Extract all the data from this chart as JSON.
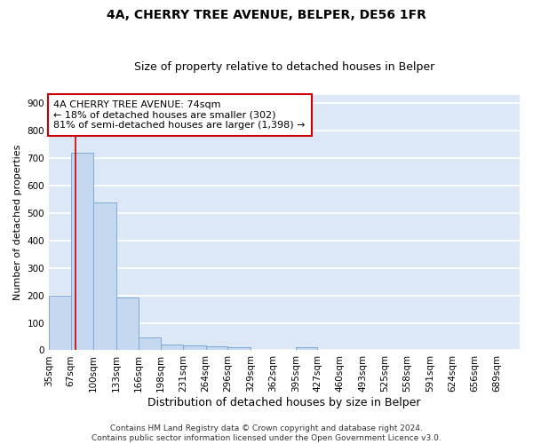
{
  "title1": "4A, CHERRY TREE AVENUE, BELPER, DE56 1FR",
  "title2": "Size of property relative to detached houses in Belper",
  "xlabel": "Distribution of detached houses by size in Belper",
  "ylabel": "Number of detached properties",
  "bin_edges": [
    35,
    67,
    100,
    133,
    166,
    198,
    231,
    264,
    296,
    329,
    362,
    395,
    427,
    460,
    493,
    525,
    558,
    591,
    624,
    656,
    689,
    722
  ],
  "bin_labels": [
    "35sqm",
    "67sqm",
    "100sqm",
    "133sqm",
    "166sqm",
    "198sqm",
    "231sqm",
    "264sqm",
    "296sqm",
    "329sqm",
    "362sqm",
    "395sqm",
    "427sqm",
    "460sqm",
    "493sqm",
    "525sqm",
    "558sqm",
    "591sqm",
    "624sqm",
    "656sqm",
    "689sqm"
  ],
  "values": [
    200,
    720,
    537,
    193,
    47,
    22,
    17,
    14,
    10,
    0,
    0,
    10,
    0,
    0,
    0,
    0,
    0,
    0,
    0,
    0,
    0
  ],
  "bar_color": "#c5d8f0",
  "bar_edgecolor": "#7aaad4",
  "bg_color": "#dce8f5",
  "grid_color": "#ffffff",
  "property_line_x": 74,
  "property_line_color": "#cc0000",
  "ylim": [
    0,
    930
  ],
  "yticks": [
    0,
    100,
    200,
    300,
    400,
    500,
    600,
    700,
    800,
    900
  ],
  "annotation_text": "4A CHERRY TREE AVENUE: 74sqm\n← 18% of detached houses are smaller (302)\n81% of semi-detached houses are larger (1,398) →",
  "annotation_box_facecolor": "#ffffff",
  "annotation_box_edgecolor": "#cc0000",
  "footer": "Contains HM Land Registry data © Crown copyright and database right 2024.\nContains public sector information licensed under the Open Government Licence v3.0.",
  "title1_fontsize": 10,
  "title2_fontsize": 9,
  "xlabel_fontsize": 9,
  "ylabel_fontsize": 8,
  "tick_fontsize": 7.5,
  "annotation_fontsize": 8,
  "footer_fontsize": 6.5
}
